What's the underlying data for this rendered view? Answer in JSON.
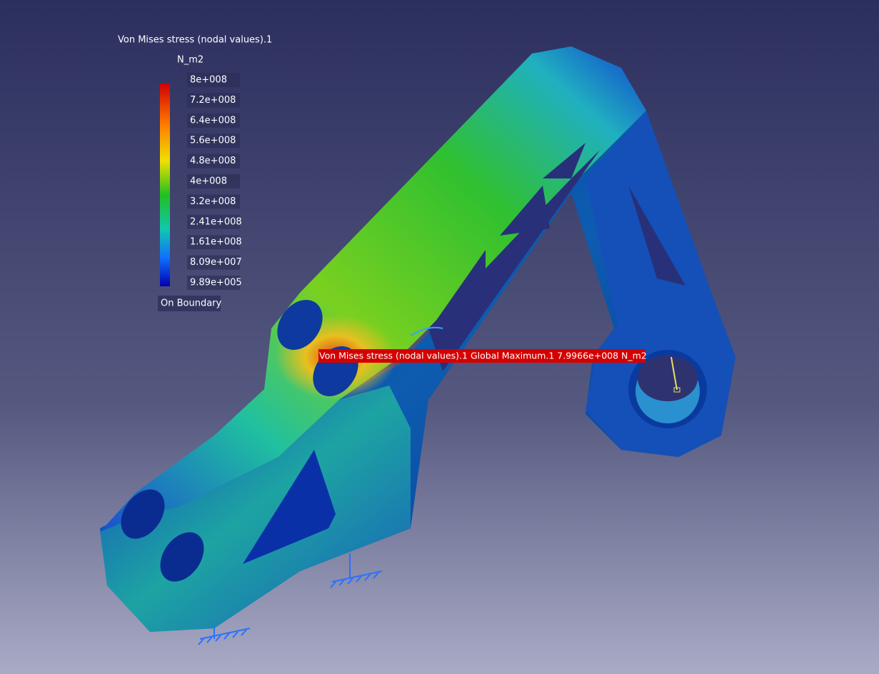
{
  "legend": {
    "title": "Von Mises stress (nodal values).1",
    "unit": "N_m2",
    "labels": [
      "8e+008",
      "7.2e+008",
      "6.4e+008",
      "5.6e+008",
      "4.8e+008",
      "4e+008",
      "3.2e+008",
      "2.41e+008",
      "1.61e+008",
      "8.09e+007",
      "9.89e+005"
    ],
    "footer": "On Boundary"
  },
  "annotation": {
    "text": "Von Mises stress (nodal values).1  Global Maximum.1  7.9966e+008 N_m2"
  }
}
